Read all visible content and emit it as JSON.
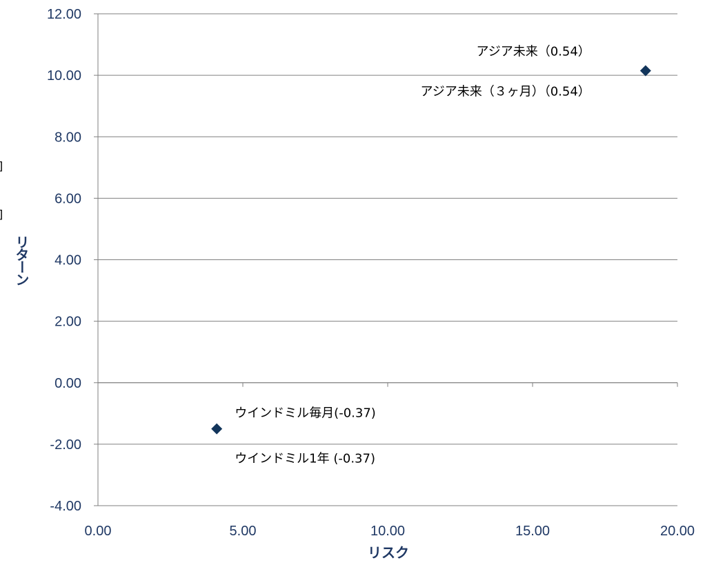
{
  "colors": {
    "gridline": "#7f7f7f",
    "axis": "#7f7f7f",
    "marker": "#12355b",
    "tick_text": "#1f3864",
    "title_text": "#1f3864"
  },
  "chart_data": {
    "type": "scatter",
    "title": "",
    "xlabel": "リスク",
    "ylabel": "リターン",
    "xlim": [
      0,
      20
    ],
    "ylim": [
      -4,
      12
    ],
    "x_ticks": [
      "0.00",
      "5.00",
      "10.00",
      "15.00",
      "20.00"
    ],
    "y_ticks": [
      "-4.00",
      "-2.00",
      "0.00",
      "2.00",
      "4.00",
      "6.00",
      "8.00",
      "10.00",
      "12.00"
    ],
    "grid": "horizontal",
    "legend": "none",
    "marker": "diamond",
    "points": [
      {
        "x": 18.9,
        "y": 10.15
      },
      {
        "x": 4.1,
        "y": -1.5
      }
    ],
    "annotations": [
      {
        "text": "アジア未来（0.54）",
        "x": 18.9,
        "y": 10.15,
        "anchor": "end",
        "dx": -80,
        "dy": -28
      },
      {
        "text": "アジア未来（３ヶ月）（0.54）",
        "x": 18.9,
        "y": 10.15,
        "anchor": "end",
        "dx": -80,
        "dy": 30
      },
      {
        "text": "ウインドミル毎月(-0.37)",
        "x": 4.1,
        "y": -1.5,
        "anchor": "start",
        "dx": 26,
        "dy": -23
      },
      {
        "text": "ウインドミル1年 (-0.37)",
        "x": 4.1,
        "y": -1.5,
        "anchor": "start",
        "dx": 26,
        "dy": 43
      }
    ],
    "edge_marks": [
      "]",
      "]"
    ]
  }
}
